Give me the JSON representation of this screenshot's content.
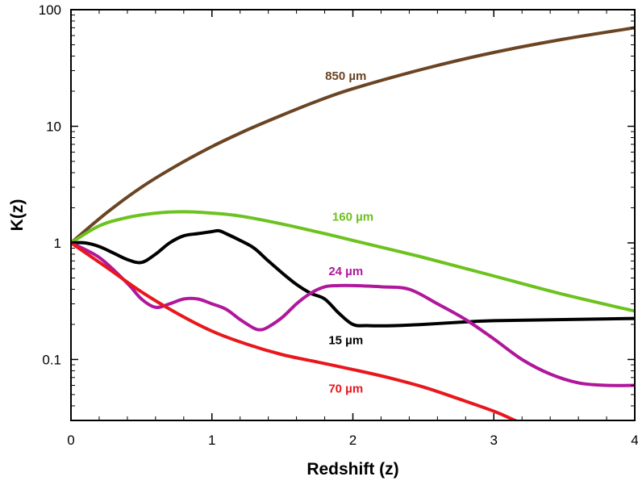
{
  "chart_data": {
    "type": "line",
    "xlabel": "Redshift (z)",
    "ylabel": "K(z)",
    "xlim": [
      0,
      4
    ],
    "ylim": [
      0.03,
      100
    ],
    "yscale": "log",
    "grid": false,
    "x_ticks": [
      0,
      1,
      2,
      3,
      4
    ],
    "x_tick_labels": [
      "0",
      "1",
      "2",
      "3",
      "4"
    ],
    "y_ticks": [
      0.1,
      1,
      10,
      100
    ],
    "y_tick_labels": [
      "0.1",
      "1",
      "10",
      "100"
    ],
    "series": [
      {
        "name": "850 µm",
        "color": "#6b4423",
        "x": [
          0,
          0.25,
          0.5,
          0.75,
          1.0,
          1.25,
          1.5,
          1.75,
          2.0,
          2.5,
          3.0,
          3.5,
          4.0
        ],
        "y": [
          1.0,
          1.8,
          3.0,
          4.6,
          6.7,
          9.3,
          12.5,
          16.5,
          21,
          31,
          43,
          56,
          70
        ]
      },
      {
        "name": "160 µm",
        "color": "#6cc21e",
        "x": [
          0,
          0.2,
          0.4,
          0.6,
          0.8,
          1.0,
          1.2,
          1.5,
          1.8,
          2.0,
          2.5,
          3.0,
          3.5,
          4.0
        ],
        "y": [
          1.0,
          1.4,
          1.65,
          1.8,
          1.85,
          1.8,
          1.7,
          1.45,
          1.2,
          1.05,
          0.75,
          0.52,
          0.36,
          0.26
        ]
      },
      {
        "name": "15 µm",
        "color": "#000000",
        "x": [
          0,
          0.1,
          0.2,
          0.3,
          0.4,
          0.5,
          0.6,
          0.7,
          0.8,
          0.9,
          1.0,
          1.05,
          1.1,
          1.2,
          1.3,
          1.4,
          1.5,
          1.6,
          1.7,
          1.8,
          1.9,
          2.0,
          2.1,
          2.3,
          2.5,
          2.8,
          3.0,
          3.5,
          4.0
        ],
        "y": [
          1.0,
          1.0,
          0.93,
          0.82,
          0.72,
          0.68,
          0.8,
          1.0,
          1.15,
          1.2,
          1.25,
          1.27,
          1.2,
          1.05,
          0.9,
          0.7,
          0.55,
          0.44,
          0.37,
          0.33,
          0.25,
          0.2,
          0.195,
          0.195,
          0.2,
          0.21,
          0.215,
          0.22,
          0.225
        ]
      },
      {
        "name": "24 µm",
        "color": "#b0179b",
        "x": [
          0,
          0.2,
          0.4,
          0.5,
          0.6,
          0.7,
          0.8,
          0.9,
          1.0,
          1.1,
          1.2,
          1.3,
          1.35,
          1.4,
          1.5,
          1.6,
          1.7,
          1.8,
          1.9,
          2.0,
          2.2,
          2.4,
          2.6,
          2.8,
          3.0,
          3.2,
          3.4,
          3.6,
          3.8,
          4.0
        ],
        "y": [
          1.0,
          0.75,
          0.45,
          0.33,
          0.28,
          0.3,
          0.33,
          0.33,
          0.3,
          0.27,
          0.22,
          0.185,
          0.18,
          0.19,
          0.23,
          0.3,
          0.37,
          0.42,
          0.43,
          0.43,
          0.42,
          0.4,
          0.3,
          0.22,
          0.15,
          0.1,
          0.075,
          0.063,
          0.06,
          0.06
        ]
      },
      {
        "name": "70 µm",
        "color": "#e8171c",
        "x": [
          0,
          0.25,
          0.5,
          0.75,
          1.0,
          1.25,
          1.5,
          1.75,
          2.0,
          2.25,
          2.5,
          2.75,
          3.0,
          3.15
        ],
        "y": [
          1.0,
          0.62,
          0.38,
          0.25,
          0.175,
          0.135,
          0.11,
          0.095,
          0.082,
          0.07,
          0.058,
          0.046,
          0.036,
          0.03
        ]
      }
    ],
    "annotations": [
      {
        "text": "850 µm",
        "series": "850 µm",
        "x": 1.95,
        "y": 25
      },
      {
        "text": "160 µm",
        "series": "160 µm",
        "x": 2.0,
        "y": 1.55
      },
      {
        "text": "24 µm",
        "series": "24 µm",
        "x": 1.95,
        "y": 0.53
      },
      {
        "text": "15 µm",
        "series": "15 µm",
        "x": 1.95,
        "y": 0.135
      },
      {
        "text": "70 µm",
        "series": "70 µm",
        "x": 1.95,
        "y": 0.052
      }
    ]
  }
}
